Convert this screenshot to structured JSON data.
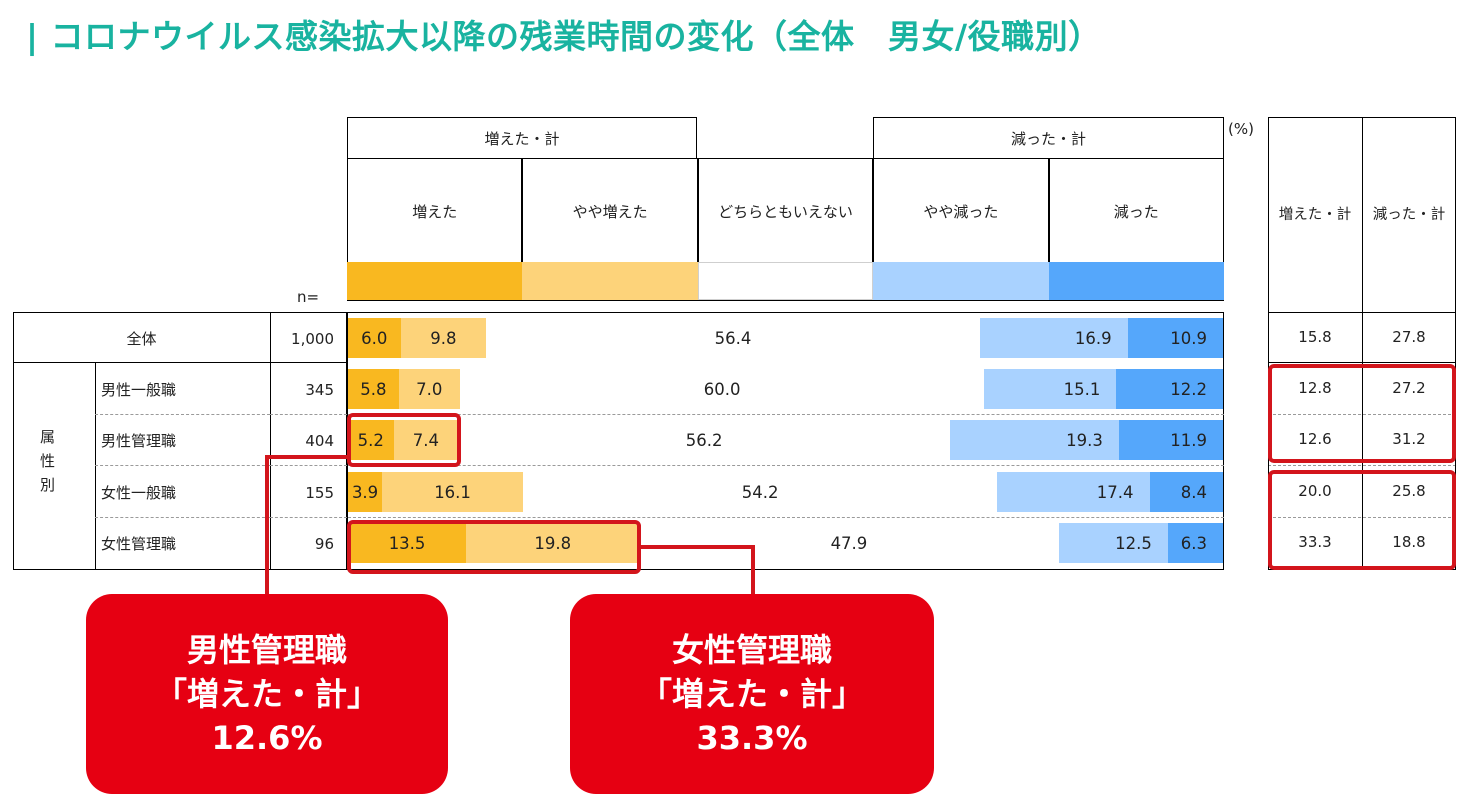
{
  "title": "| コロナウイルス感染拡大以降の残業時間の変化（全体　男女/役職別）",
  "unit": "(%)",
  "n_label": "n=",
  "group_label": "属\n性\n別",
  "headers": {
    "increase_total": "増えた・計",
    "decrease_total": "減った・計",
    "categories": [
      "増えた",
      "やや増えた",
      "どちらともいえない",
      "やや減った",
      "減った"
    ],
    "summary": [
      "増えた・計",
      "減った・計"
    ]
  },
  "colors": {
    "cat": [
      "#f9b820",
      "#fdd37a",
      "#ffffff",
      "#a9d2ff",
      "#55a7fb"
    ],
    "highlight": "#d3151c",
    "callout": "#e60012",
    "title": "#19b3a0"
  },
  "chart_data": {
    "type": "bar",
    "stacked": true,
    "orientation": "horizontal",
    "categories": [
      "全体",
      "男性一般職",
      "男性管理職",
      "女性一般職",
      "女性管理職"
    ],
    "n": [
      "1,000",
      "345",
      "404",
      "155",
      "96"
    ],
    "series": [
      {
        "name": "増えた",
        "values": [
          6.0,
          5.8,
          5.2,
          3.9,
          13.5
        ]
      },
      {
        "name": "やや増えた",
        "values": [
          9.8,
          7.0,
          7.4,
          16.1,
          19.8
        ]
      },
      {
        "name": "どちらともいえない",
        "values": [
          56.4,
          60.0,
          56.2,
          54.2,
          47.9
        ]
      },
      {
        "name": "やや減った",
        "values": [
          16.9,
          15.1,
          19.3,
          17.4,
          12.5
        ]
      },
      {
        "name": "減った",
        "values": [
          10.9,
          12.2,
          11.9,
          8.4,
          6.3
        ]
      }
    ],
    "summary": {
      "増えた・計": [
        "15.8",
        "12.8",
        "12.6",
        "20.0",
        "33.3"
      ],
      "減った・計": [
        "27.8",
        "27.2",
        "31.2",
        "25.8",
        "18.8"
      ]
    },
    "xlim": [
      0,
      100
    ]
  },
  "callouts": [
    {
      "lines": [
        "男性管理職",
        "「増えた・計」",
        "12.6%"
      ]
    },
    {
      "lines": [
        "女性管理職",
        "「増えた・計」",
        "33.3%"
      ]
    }
  ]
}
